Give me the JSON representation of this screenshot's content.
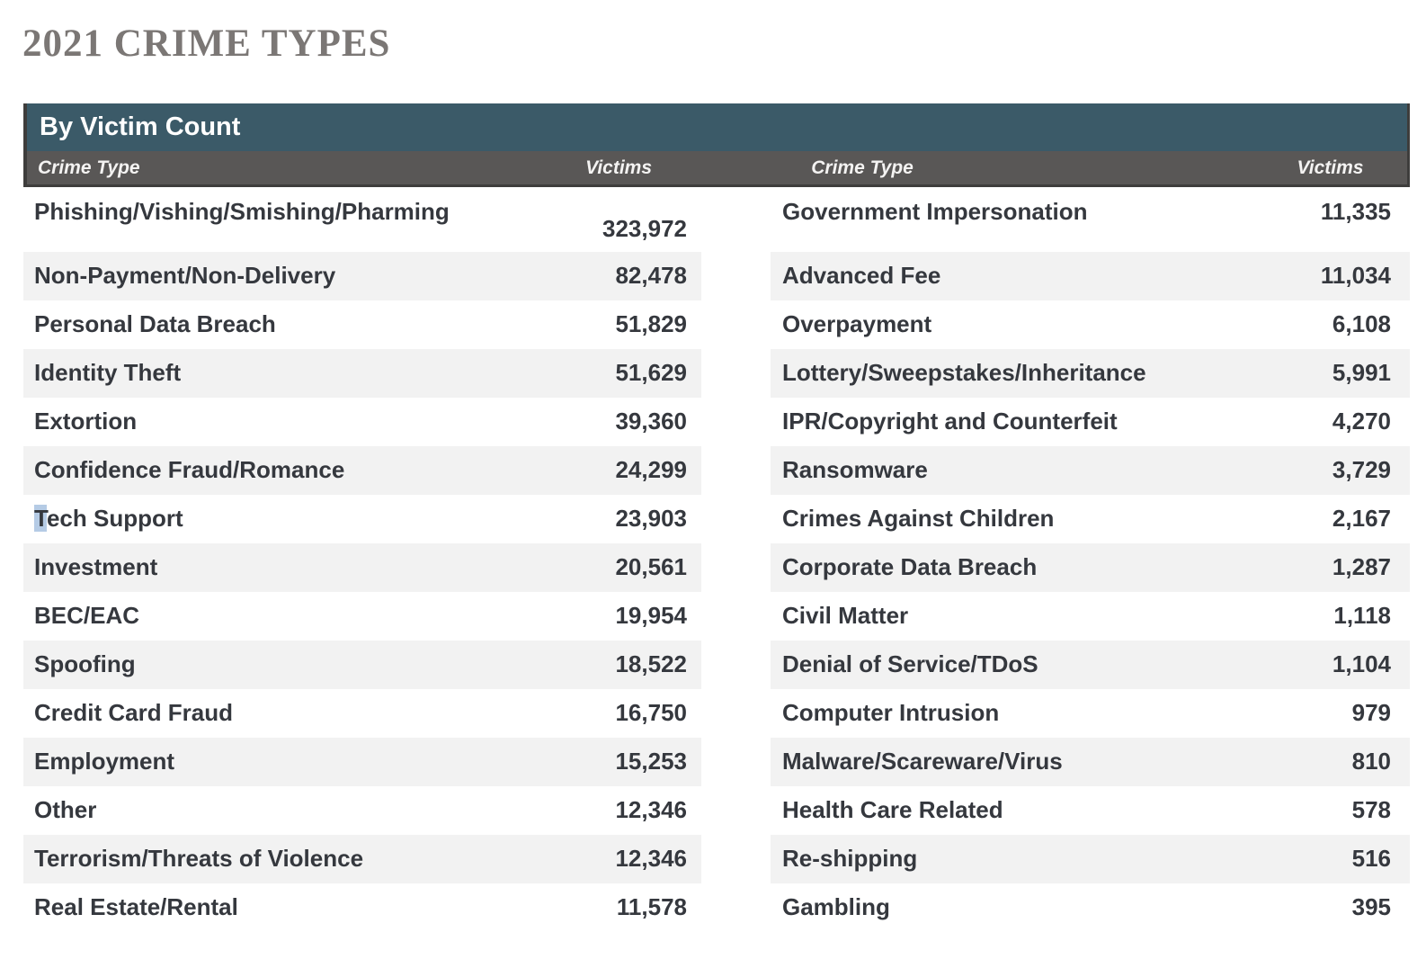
{
  "page_title": "2021 CRIME TYPES",
  "colors": {
    "table_header_bg": "#3B5A68",
    "column_header_bg": "#595756",
    "stripe_row_bg": "#F2F2F2",
    "body_text": "#35383E",
    "title_text": "#7B7775",
    "selection_highlight": "#B5CBE5",
    "header_border": "#3E3D3C"
  },
  "table": {
    "title": "By Victim Count",
    "columns": {
      "crime_type": "Crime Type",
      "victims": "Victims",
      "crime_type_right": "Crime Type",
      "victims_right": "Victims"
    },
    "rows": [
      {
        "left": {
          "type": "Phishing/Vishing/Smishing/Pharming",
          "victims": "323,972"
        },
        "right": {
          "type": "Government Impersonation",
          "victims": "11,335"
        }
      },
      {
        "left": {
          "type": "Non-Payment/Non-Delivery",
          "victims": "82,478"
        },
        "right": {
          "type": "Advanced Fee",
          "victims": "11,034"
        }
      },
      {
        "left": {
          "type": "Personal Data Breach",
          "victims": "51,829"
        },
        "right": {
          "type": "Overpayment",
          "victims": "6,108"
        }
      },
      {
        "left": {
          "type": "Identity Theft",
          "victims": "51,629"
        },
        "right": {
          "type": "Lottery/Sweepstakes/Inheritance",
          "victims": "5,991"
        }
      },
      {
        "left": {
          "type": "Extortion",
          "victims": "39,360"
        },
        "right": {
          "type": "IPR/Copyright and Counterfeit",
          "victims": "4,270"
        }
      },
      {
        "left": {
          "type": "Confidence Fraud/Romance",
          "victims": "24,299"
        },
        "right": {
          "type": "Ransomware",
          "victims": "3,729"
        }
      },
      {
        "left": {
          "type": "Tech Support",
          "type_selected": "T",
          "type_rest": "ech Support",
          "victims": "23,903"
        },
        "right": {
          "type": "Crimes Against Children",
          "victims": "2,167"
        }
      },
      {
        "left": {
          "type": "Investment",
          "victims": "20,561"
        },
        "right": {
          "type": "Corporate Data Breach",
          "victims": "1,287"
        }
      },
      {
        "left": {
          "type": "BEC/EAC",
          "victims": "19,954"
        },
        "right": {
          "type": "Civil Matter",
          "victims": "1,118"
        }
      },
      {
        "left": {
          "type": "Spoofing",
          "victims": "18,522"
        },
        "right": {
          "type": "Denial of Service/TDoS",
          "victims": "1,104"
        }
      },
      {
        "left": {
          "type": "Credit Card Fraud",
          "victims": "16,750"
        },
        "right": {
          "type": "Computer Intrusion",
          "victims": "979"
        }
      },
      {
        "left": {
          "type": "Employment",
          "victims": "15,253"
        },
        "right": {
          "type": "Malware/Scareware/Virus",
          "victims": "810"
        }
      },
      {
        "left": {
          "type": "Other",
          "victims": "12,346"
        },
        "right": {
          "type": "Health Care Related",
          "victims": "578"
        }
      },
      {
        "left": {
          "type": "Terrorism/Threats of Violence",
          "victims": "12,346"
        },
        "right": {
          "type": "Re-shipping",
          "victims": "516"
        }
      },
      {
        "left": {
          "type": "Real Estate/Rental",
          "victims": "11,578"
        },
        "right": {
          "type": "Gambling",
          "victims": "395"
        }
      }
    ]
  },
  "chart_data": {
    "type": "table",
    "title": "2021 CRIME TYPES",
    "subtitle": "By Victim Count",
    "columns": [
      "Crime Type",
      "Victims"
    ],
    "rows": [
      [
        "Phishing/Vishing/Smishing/Pharming",
        323972
      ],
      [
        "Non-Payment/Non-Delivery",
        82478
      ],
      [
        "Personal Data Breach",
        51829
      ],
      [
        "Identity Theft",
        51629
      ],
      [
        "Extortion",
        39360
      ],
      [
        "Confidence Fraud/Romance",
        24299
      ],
      [
        "Tech Support",
        23903
      ],
      [
        "Investment",
        20561
      ],
      [
        "BEC/EAC",
        19954
      ],
      [
        "Spoofing",
        18522
      ],
      [
        "Credit Card Fraud",
        16750
      ],
      [
        "Employment",
        15253
      ],
      [
        "Other",
        12346
      ],
      [
        "Terrorism/Threats of Violence",
        12346
      ],
      [
        "Real Estate/Rental",
        11578
      ],
      [
        "Government Impersonation",
        11335
      ],
      [
        "Advanced Fee",
        11034
      ],
      [
        "Overpayment",
        6108
      ],
      [
        "Lottery/Sweepstakes/Inheritance",
        5991
      ],
      [
        "IPR/Copyright and Counterfeit",
        4270
      ],
      [
        "Ransomware",
        3729
      ],
      [
        "Crimes Against Children",
        2167
      ],
      [
        "Corporate Data Breach",
        1287
      ],
      [
        "Civil Matter",
        1118
      ],
      [
        "Denial of Service/TDoS",
        1104
      ],
      [
        "Computer Intrusion",
        979
      ],
      [
        "Malware/Scareware/Virus",
        810
      ],
      [
        "Health Care Related",
        578
      ],
      [
        "Re-shipping",
        516
      ],
      [
        "Gambling",
        395
      ]
    ]
  }
}
